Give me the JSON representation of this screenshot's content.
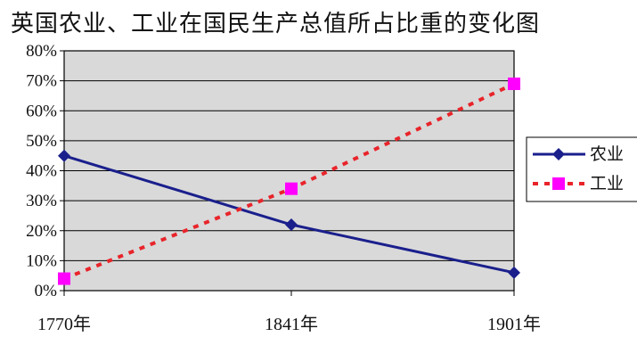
{
  "chart_data": {
    "type": "line",
    "title": "英国农业、工业在国民生产总值所占比重的变化图",
    "categories": [
      "1770年",
      "1841年",
      "1901年"
    ],
    "series": [
      {
        "name": "农业",
        "values": [
          45,
          22,
          6
        ],
        "color": "#1a1f8c",
        "marker": "diamond",
        "line": "solid"
      },
      {
        "name": "工业",
        "values": [
          4,
          34,
          69
        ],
        "color": "#e8242a",
        "marker_color": "#ff00ff",
        "marker": "square",
        "line": "dashed"
      }
    ],
    "ylim": [
      0,
      80
    ],
    "yticks": [
      "0%",
      "10%",
      "20%",
      "30%",
      "40%",
      "50%",
      "60%",
      "70%",
      "80%"
    ],
    "grid": true,
    "legend": "right",
    "plot_background": "#d9d9d9"
  }
}
